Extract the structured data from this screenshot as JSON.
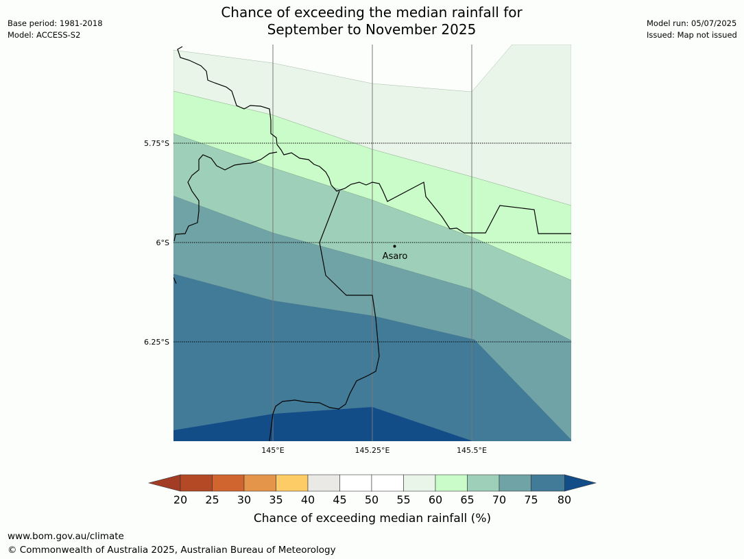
{
  "header": {
    "title_line1": "Chance of exceeding the median rainfall for",
    "title_line2": "September to November 2025",
    "base_period": "Base period: 1981-2018",
    "model": "Model: ACCESS-S2",
    "model_run": "Model run: 05/07/2025",
    "issued": "Issued: Map not issued"
  },
  "map": {
    "lat_labels": [
      "5.75°S",
      "6°S",
      "6.25°S"
    ],
    "lon_labels": [
      "145°E",
      "145.25°E",
      "145.5°E"
    ],
    "place": {
      "name": "Asaro",
      "lon": 145.3,
      "lat": -5.99
    }
  },
  "legend": {
    "label": "Chance of exceeding median rainfall (%)",
    "ticks": [
      "20",
      "25",
      "30",
      "35",
      "40",
      "45",
      "50",
      "55",
      "60",
      "65",
      "70",
      "75",
      "80"
    ],
    "colors": [
      "#a33c25",
      "#b34a25",
      "#d0652f",
      "#e5954a",
      "#fecc66",
      "#ebe9e5",
      "#ffffff",
      "#ffffff",
      "#eaf5ea",
      "#c9fcc9",
      "#9ecfb9",
      "#6fa3a6",
      "#427b98",
      "#134d88"
    ]
  },
  "footer": {
    "url": "www.bom.gov.au/climate",
    "copyright": "© Commonwealth of Australia 2025, Australian Bureau of Meteorology"
  }
}
